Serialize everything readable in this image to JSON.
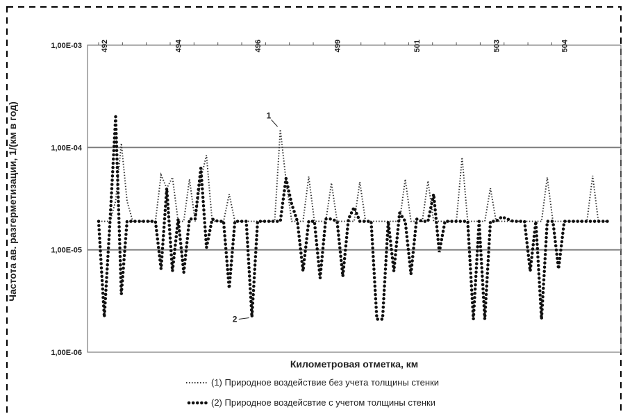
{
  "chart_data": {
    "type": "line",
    "xlabel": "Километровая отметка, км",
    "ylabel": "Частота ав. разгерметизации, 1/(км в год)",
    "yscale": "log",
    "ylim": [
      1e-06,
      0.001
    ],
    "ytick_labels": [
      "1,00E-06",
      "1,00E-05",
      "1,00E-04",
      "1,00E-03"
    ],
    "grid": "horizontal major lines",
    "xtick_labels": [
      "492",
      "494",
      "496",
      "499",
      "501",
      "503",
      "504"
    ],
    "legend_position": "bottom",
    "series": [
      {
        "name": "(1) Природное воздействие без учета толщины стенки",
        "style": "dotted",
        "x": [
          0,
          1,
          2,
          3,
          4,
          5,
          6,
          7,
          8,
          9,
          10,
          11,
          12,
          13,
          14,
          15,
          16,
          17,
          18,
          19,
          20,
          21,
          22,
          23,
          24,
          25,
          26,
          27,
          28,
          29,
          30,
          31,
          32,
          33,
          34,
          35,
          36,
          37,
          38,
          39,
          40,
          41,
          42,
          43,
          44,
          45,
          46,
          47,
          48,
          49,
          50,
          51,
          52,
          53,
          54,
          55,
          56,
          57,
          58,
          59,
          60,
          61,
          62,
          63,
          64,
          65,
          66,
          67,
          68,
          69,
          70,
          71,
          72,
          73,
          74,
          75,
          76,
          77,
          78,
          79,
          80,
          81,
          82,
          83,
          84,
          85,
          86,
          87,
          88,
          89,
          90
        ],
        "values": [
          1.9e-05,
          1.9e-05,
          1.9e-05,
          3e-05,
          0.00011,
          3e-05,
          1.9e-05,
          1.9e-05,
          1.9e-05,
          1.9e-05,
          1.9e-05,
          5.4e-05,
          4e-05,
          5.1e-05,
          1.9e-05,
          1.9e-05,
          4.9e-05,
          1.9e-05,
          5e-05,
          8.4e-05,
          1.9e-05,
          1.9e-05,
          1.9e-05,
          3.5e-05,
          1.9e-05,
          1.9e-05,
          1.9e-05,
          1.9e-05,
          1.9e-05,
          1.9e-05,
          1.9e-05,
          1.9e-05,
          0.00015,
          4.8e-05,
          1.9e-05,
          1.9e-05,
          1.9e-05,
          5.2e-05,
          1.9e-05,
          1.9e-05,
          1.9e-05,
          4.5e-05,
          1.9e-05,
          1.9e-05,
          1.9e-05,
          1.9e-05,
          4.6e-05,
          1.9e-05,
          1.9e-05,
          1.9e-05,
          1.9e-05,
          1.9e-05,
          1.9e-05,
          1.9e-05,
          4.9e-05,
          1.9e-05,
          1.9e-05,
          1.9e-05,
          4.7e-05,
          1.9e-05,
          1.9e-05,
          1.9e-05,
          1.9e-05,
          1.9e-05,
          8e-05,
          1.9e-05,
          1.9e-05,
          1.9e-05,
          1.9e-05,
          4e-05,
          1.9e-05,
          1.9e-05,
          1.9e-05,
          1.9e-05,
          1.9e-05,
          1.9e-05,
          1.9e-05,
          1.9e-05,
          1.9e-05,
          5.1e-05,
          1.9e-05,
          1.9e-05,
          1.9e-05,
          1.9e-05,
          1.9e-05,
          1.9e-05,
          1.9e-05,
          5.3e-05,
          1.9e-05,
          1.9e-05,
          1.9e-05
        ]
      },
      {
        "name": "(2) Природное воздейсвтие с учетом толщины стенки",
        "style": "heavy-dotted",
        "x": [
          0,
          1,
          2,
          3,
          4,
          5,
          6,
          7,
          8,
          9,
          10,
          11,
          12,
          13,
          14,
          15,
          16,
          17,
          18,
          19,
          20,
          21,
          22,
          23,
          24,
          25,
          26,
          27,
          28,
          29,
          30,
          31,
          32,
          33,
          34,
          35,
          36,
          37,
          38,
          39,
          40,
          41,
          42,
          43,
          44,
          45,
          46,
          47,
          48,
          49,
          50,
          51,
          52,
          53,
          54,
          55,
          56,
          57,
          58,
          59,
          60,
          61,
          62,
          63,
          64,
          65,
          66,
          67,
          68,
          69,
          70,
          71,
          72,
          73,
          74,
          75,
          76,
          77,
          78,
          79,
          80,
          81,
          82,
          83,
          84,
          85,
          86,
          87,
          88,
          89,
          90
        ],
        "values": [
          1.9e-05,
          2.2e-06,
          1.9e-05,
          0.0002,
          3.7e-06,
          1.9e-05,
          1.9e-05,
          1.9e-05,
          1.9e-05,
          1.9e-05,
          1.9e-05,
          6.5e-06,
          4e-05,
          6.2e-06,
          2e-05,
          6e-06,
          2e-05,
          2e-05,
          6.3e-05,
          1.05e-05,
          2e-05,
          1.9e-05,
          1.9e-05,
          4.2e-06,
          1.9e-05,
          1.9e-05,
          1.9e-05,
          2.2e-06,
          1.9e-05,
          1.9e-05,
          1.9e-05,
          1.9e-05,
          1.9e-05,
          5e-05,
          2.8e-05,
          1.9e-05,
          6.2e-06,
          1.9e-05,
          1.9e-05,
          5.3e-06,
          2e-05,
          2e-05,
          1.9e-05,
          5.5e-06,
          2e-05,
          2.6e-05,
          1.9e-05,
          1.9e-05,
          1.9e-05,
          2.1e-06,
          2.1e-06,
          1.9e-05,
          6.2e-06,
          2.3e-05,
          1.9e-05,
          5.8e-06,
          2e-05,
          1.9e-05,
          1.9e-05,
          3.5e-05,
          9.5e-06,
          1.9e-05,
          1.9e-05,
          1.9e-05,
          1.9e-05,
          1.9e-05,
          2.1e-06,
          1.9e-05,
          2.1e-06,
          1.9e-05,
          1.9e-05,
          2.1e-05,
          2e-05,
          1.9e-05,
          1.9e-05,
          1.9e-05,
          6.2e-06,
          1.9e-05,
          2.1e-06,
          1.9e-05,
          1.9e-05,
          6.5e-06,
          1.9e-05,
          1.9e-05,
          1.9e-05,
          1.9e-05,
          1.9e-05,
          1.9e-05,
          1.9e-05,
          1.9e-05,
          1.9e-05
        ]
      }
    ],
    "annotations": [
      {
        "text": "1",
        "series": 0
      },
      {
        "text": "2",
        "series": 1
      }
    ]
  }
}
